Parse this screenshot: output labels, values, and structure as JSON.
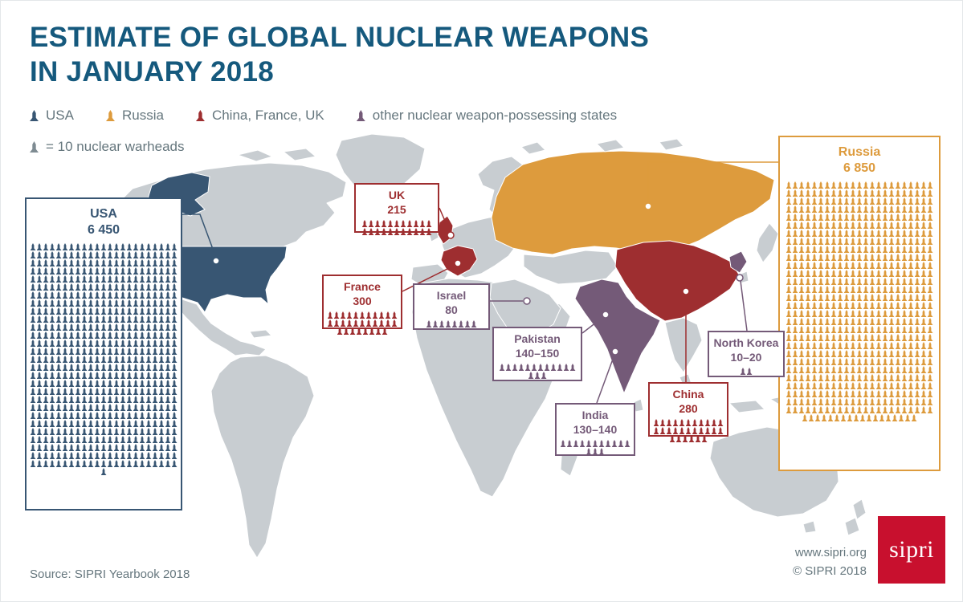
{
  "header": {
    "title_line1": "ESTIMATE OF GLOBAL NUCLEAR WEAPONS",
    "title_line2": "IN JANUARY 2018"
  },
  "legend": {
    "items": [
      {
        "label": "USA",
        "color_key": "usa"
      },
      {
        "label": "Russia",
        "color_key": "russia"
      },
      {
        "label": "China, France, UK",
        "color_key": "red"
      },
      {
        "label": "other nuclear weapon-possessing states",
        "color_key": "purple"
      }
    ],
    "scale_note": "= 10 nuclear warheads"
  },
  "colors": {
    "brand": "#15597d",
    "usa": "#385673",
    "russia": "#dd9b3d",
    "red": "#9e2e30",
    "purple": "#745a78",
    "map": "#c8cdd1",
    "scale": "#7e8b92",
    "logo": "#c8102e",
    "muted_text": "#66777e"
  },
  "chart_data": {
    "type": "bar",
    "style": "pictogram over world map, one icon = 10 warheads",
    "title": "Estimate of Global Nuclear Weapons in January 2018",
    "unit_per_icon": 10,
    "icon": "nuclear warhead",
    "categories": [
      "USA",
      "Russia",
      "UK",
      "France",
      "Israel",
      "Pakistan",
      "India",
      "China",
      "North Korea"
    ],
    "values": [
      6450,
      6850,
      215,
      300,
      80,
      145,
      135,
      280,
      15
    ],
    "value_labels": [
      "6 450",
      "6 850",
      "215",
      "300",
      "80",
      "140–150",
      "130–140",
      "280",
      "10–20"
    ],
    "countries": [
      {
        "id": "usa",
        "name": "USA",
        "value_label": "6 450",
        "icons": 645,
        "color_key": "usa"
      },
      {
        "id": "russia",
        "name": "Russia",
        "value_label": "6 850",
        "icons": 685,
        "color_key": "russia"
      },
      {
        "id": "uk",
        "name": "UK",
        "value_label": "215",
        "icons": 22,
        "color_key": "red"
      },
      {
        "id": "france",
        "name": "France",
        "value_label": "300",
        "icons": 30,
        "color_key": "red"
      },
      {
        "id": "israel",
        "name": "Israel",
        "value_label": "80",
        "icons": 8,
        "color_key": "purple"
      },
      {
        "id": "pakistan",
        "name": "Pakistan",
        "value_label": "140–150",
        "icons": 15,
        "color_key": "purple"
      },
      {
        "id": "india",
        "name": "India",
        "value_label": "130–140",
        "icons": 14,
        "color_key": "purple"
      },
      {
        "id": "china",
        "name": "China",
        "value_label": "280",
        "icons": 28,
        "color_key": "red"
      },
      {
        "id": "north_korea",
        "name": "North Korea",
        "value_label": "10–20",
        "icons": 2,
        "color_key": "purple"
      }
    ]
  },
  "footer": {
    "source": "Source: SIPRI Yearbook 2018",
    "website": "www.sipri.org",
    "copyright": "© SIPRI 2018",
    "logo_text": "sipri"
  }
}
